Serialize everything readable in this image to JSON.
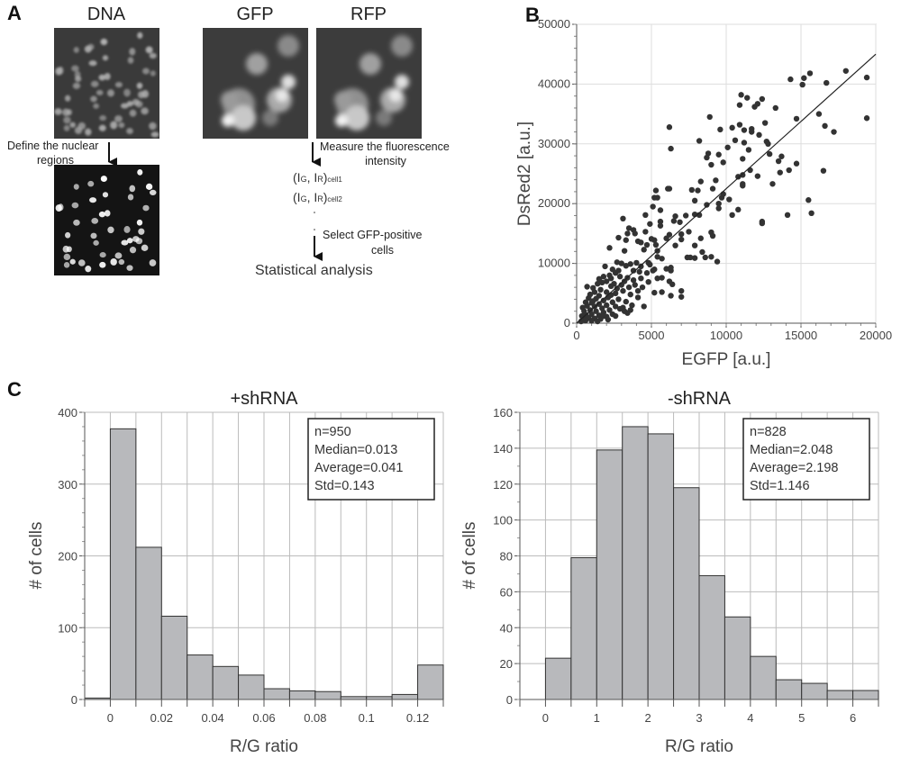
{
  "panel_a": {
    "label": "A",
    "dna_title": "DNA",
    "gfp_title": "GFP",
    "rfp_title": "RFP",
    "define_line1": "Define the nuclear",
    "define_line2": "regions",
    "measure_line1": "Measure the fluorescence",
    "measure_line2": "intensity",
    "cell1": {
      "main": "(I",
      "g": "G",
      "mid": ", I",
      "r": "R",
      "close": ")",
      "sub": "cell1"
    },
    "cell2": {
      "main": "(I",
      "g": "G",
      "mid": ", I",
      "r": "R",
      "close": ")",
      "sub": "cell2"
    },
    "select_line1": "Select GFP-positive",
    "select_line2": "cells",
    "final": "Statistical analysis"
  },
  "panel_b_label": "B",
  "panel_c_label": "C",
  "chart_data": [
    {
      "type": "scatter",
      "xlabel": "EGFP [a.u.]",
      "ylabel": "DsRed2 [a.u.]",
      "xlim": [
        0,
        20000
      ],
      "ylim": [
        0,
        50000
      ],
      "xticks": [
        "0",
        "5000",
        "10000",
        "15000",
        "20000"
      ],
      "yticks": [
        "0",
        "10000",
        "20000",
        "30000",
        "40000",
        "50000"
      ],
      "grid": true,
      "marker_color": "#333333",
      "fit_line": {
        "x": [
          0,
          20000
        ],
        "y": [
          0,
          45000
        ]
      },
      "points": [
        [
          14300,
          40800
        ],
        [
          15200,
          41000
        ],
        [
          15600,
          41800
        ],
        [
          15100,
          39900
        ],
        [
          18000,
          42200
        ],
        [
          19400,
          41100
        ],
        [
          19400,
          34300
        ],
        [
          16700,
          40200
        ],
        [
          16200,
          35000
        ],
        [
          16600,
          33000
        ],
        [
          17200,
          32000
        ],
        [
          14700,
          34200
        ],
        [
          13300,
          36000
        ],
        [
          11000,
          38200
        ],
        [
          11400,
          37700
        ],
        [
          12400,
          37500
        ],
        [
          12100,
          36700
        ],
        [
          11900,
          36200
        ],
        [
          10900,
          36500
        ],
        [
          8900,
          34500
        ],
        [
          6200,
          32800
        ],
        [
          6300,
          29200
        ],
        [
          9600,
          32400
        ],
        [
          10900,
          33200
        ],
        [
          10400,
          32700
        ],
        [
          11200,
          32300
        ],
        [
          11700,
          32500
        ],
        [
          11700,
          32000
        ],
        [
          12200,
          31500
        ],
        [
          12600,
          33500
        ],
        [
          10600,
          30600
        ],
        [
          11200,
          30200
        ],
        [
          12700,
          30400
        ],
        [
          12800,
          30000
        ],
        [
          8200,
          30500
        ],
        [
          10100,
          29400
        ],
        [
          11500,
          29000
        ],
        [
          8800,
          28400
        ],
        [
          8700,
          27700
        ],
        [
          9500,
          28200
        ],
        [
          9800,
          26900
        ],
        [
          9000,
          26500
        ],
        [
          11100,
          27500
        ],
        [
          12900,
          28300
        ],
        [
          13700,
          27900
        ],
        [
          13500,
          27100
        ],
        [
          14700,
          26700
        ],
        [
          13600,
          25200
        ],
        [
          14200,
          25600
        ],
        [
          16500,
          25500
        ],
        [
          11100,
          24800
        ],
        [
          10800,
          24500
        ],
        [
          11600,
          25600
        ],
        [
          12100,
          24600
        ],
        [
          8300,
          23700
        ],
        [
          9300,
          23900
        ],
        [
          11100,
          23300
        ],
        [
          11100,
          23000
        ],
        [
          13100,
          23300
        ],
        [
          7700,
          22300
        ],
        [
          8100,
          22200
        ],
        [
          9100,
          22500
        ],
        [
          6100,
          22500
        ],
        [
          6200,
          22500
        ],
        [
          5300,
          22200
        ],
        [
          5200,
          21000
        ],
        [
          5400,
          21000
        ],
        [
          9700,
          21000
        ],
        [
          9800,
          21600
        ],
        [
          10200,
          20700
        ],
        [
          9500,
          20000
        ],
        [
          9500,
          19200
        ],
        [
          7900,
          20500
        ],
        [
          8700,
          19800
        ],
        [
          5100,
          19500
        ],
        [
          5600,
          18900
        ],
        [
          10800,
          19000
        ],
        [
          15500,
          20600
        ],
        [
          15700,
          18400
        ],
        [
          14100,
          18100
        ],
        [
          10400,
          18100
        ],
        [
          12400,
          17000
        ],
        [
          12400,
          16700
        ],
        [
          7300,
          18000
        ],
        [
          6600,
          17900
        ],
        [
          7900,
          18200
        ],
        [
          8200,
          18100
        ],
        [
          4600,
          18100
        ],
        [
          3100,
          17500
        ],
        [
          6500,
          17100
        ],
        [
          5600,
          17000
        ],
        [
          6900,
          16900
        ],
        [
          5600,
          16300
        ],
        [
          4900,
          16600
        ],
        [
          3500,
          15900
        ],
        [
          3800,
          15600
        ],
        [
          3900,
          15000
        ],
        [
          3400,
          15000
        ],
        [
          4600,
          15300
        ],
        [
          6200,
          14800
        ],
        [
          7500,
          15300
        ],
        [
          7000,
          14900
        ],
        [
          9000,
          15200
        ],
        [
          9100,
          14600
        ],
        [
          8300,
          14200
        ],
        [
          5200,
          13900
        ],
        [
          5000,
          14100
        ],
        [
          5300,
          13100
        ],
        [
          6000,
          14200
        ],
        [
          7000,
          14000
        ],
        [
          2800,
          14300
        ],
        [
          3300,
          13900
        ],
        [
          4100,
          13700
        ],
        [
          4300,
          13500
        ],
        [
          4700,
          13100
        ],
        [
          6600,
          13000
        ],
        [
          7900,
          13000
        ],
        [
          5400,
          12100
        ],
        [
          2200,
          12600
        ],
        [
          3200,
          12100
        ],
        [
          4500,
          12300
        ],
        [
          8400,
          11900
        ],
        [
          7400,
          11000
        ],
        [
          7600,
          11000
        ],
        [
          7900,
          10900
        ],
        [
          8600,
          11000
        ],
        [
          9000,
          11100
        ],
        [
          9400,
          10300
        ],
        [
          5700,
          10800
        ],
        [
          5400,
          11100
        ],
        [
          4800,
          10100
        ],
        [
          6300,
          9300
        ],
        [
          6000,
          9100
        ],
        [
          6300,
          8800
        ],
        [
          5100,
          8800
        ],
        [
          5700,
          7600
        ],
        [
          5400,
          7500
        ],
        [
          6200,
          7000
        ],
        [
          6400,
          6500
        ],
        [
          4800,
          6900
        ],
        [
          6300,
          4600
        ],
        [
          7000,
          5400
        ],
        [
          7000,
          4400
        ],
        [
          5700,
          5200
        ],
        [
          5200,
          5100
        ],
        [
          4100,
          4300
        ],
        [
          4500,
          2800
        ],
        [
          3600,
          2200
        ],
        [
          3400,
          1700
        ],
        [
          2900,
          2400
        ],
        [
          3000,
          10000
        ],
        [
          2700,
          10200
        ],
        [
          3300,
          9600
        ],
        [
          3600,
          9900
        ],
        [
          4000,
          10100
        ],
        [
          4300,
          9500
        ],
        [
          3800,
          8800
        ],
        [
          4200,
          8600
        ],
        [
          2400,
          9000
        ],
        [
          2600,
          8400
        ],
        [
          2900,
          7800
        ],
        [
          3400,
          7600
        ],
        [
          3800,
          7200
        ],
        [
          4300,
          7500
        ],
        [
          2200,
          8000
        ],
        [
          1800,
          7800
        ],
        [
          1500,
          7400
        ],
        [
          2000,
          7000
        ],
        [
          2500,
          6600
        ],
        [
          3000,
          6400
        ],
        [
          3500,
          6000
        ],
        [
          2300,
          6200
        ],
        [
          1400,
          6600
        ],
        [
          1100,
          5900
        ],
        [
          700,
          6100
        ],
        [
          1600,
          5600
        ],
        [
          2000,
          5200
        ],
        [
          2600,
          5000
        ],
        [
          3100,
          5400
        ],
        [
          3600,
          4800
        ],
        [
          1200,
          5200
        ],
        [
          900,
          4800
        ],
        [
          1500,
          4600
        ],
        [
          2100,
          4300
        ],
        [
          2800,
          4000
        ],
        [
          3300,
          3600
        ],
        [
          2400,
          3500
        ],
        [
          1800,
          3800
        ],
        [
          1300,
          4100
        ],
        [
          800,
          4200
        ],
        [
          600,
          3500
        ],
        [
          1000,
          3400
        ],
        [
          1500,
          3200
        ],
        [
          2000,
          3000
        ],
        [
          2600,
          2800
        ],
        [
          3100,
          2600
        ],
        [
          2200,
          2200
        ],
        [
          1700,
          2500
        ],
        [
          1200,
          2800
        ],
        [
          700,
          2900
        ],
        [
          400,
          2600
        ],
        [
          500,
          2000
        ],
        [
          900,
          2200
        ],
        [
          1300,
          2000
        ],
        [
          1800,
          1800
        ],
        [
          2400,
          1500
        ],
        [
          2000,
          1100
        ],
        [
          1500,
          1300
        ],
        [
          1000,
          1500
        ],
        [
          600,
          1400
        ],
        [
          350,
          1200
        ],
        [
          450,
          800
        ],
        [
          800,
          900
        ],
        [
          1200,
          800
        ],
        [
          1600,
          700
        ],
        [
          2100,
          600
        ],
        [
          1000,
          400
        ],
        [
          600,
          450
        ],
        [
          300,
          300
        ],
        [
          1400,
          300
        ],
        [
          1800,
          1200
        ],
        [
          2300,
          4700
        ],
        [
          2700,
          5800
        ],
        [
          3200,
          7000
        ],
        [
          3900,
          6400
        ],
        [
          4400,
          6000
        ],
        [
          4100,
          5400
        ],
        [
          3700,
          3000
        ],
        [
          3200,
          2000
        ],
        [
          2600,
          1200
        ],
        [
          1100,
          3700
        ],
        [
          1700,
          6800
        ],
        [
          2300,
          7500
        ],
        [
          2800,
          8800
        ],
        [
          1900,
          9500
        ],
        [
          4900,
          9800
        ],
        [
          5200,
          9000
        ],
        [
          4700,
          8400
        ]
      ]
    },
    {
      "type": "bar",
      "title": "+shRNA",
      "xlabel": "R/G ratio",
      "ylabel": "# of cells",
      "xlim": [
        -0.01,
        0.13
      ],
      "ylim": [
        0,
        400
      ],
      "bin_width": 0.01,
      "bin_starts": [
        -0.01,
        0,
        0.01,
        0.02,
        0.03,
        0.04,
        0.05,
        0.06,
        0.07,
        0.08,
        0.09,
        0.1,
        0.11,
        0.12
      ],
      "values": [
        2,
        377,
        212,
        116,
        62,
        46,
        34,
        15,
        12,
        11,
        4,
        4,
        7,
        48
      ],
      "xticks": [
        {
          "v": 0,
          "label": "0"
        },
        {
          "v": 0.02,
          "label": "0.02"
        },
        {
          "v": 0.04,
          "label": "0.04"
        },
        {
          "v": 0.06,
          "label": "0.06"
        },
        {
          "v": 0.08,
          "label": "0.08"
        },
        {
          "v": 0.1,
          "label": "0.1"
        },
        {
          "v": 0.12,
          "label": "0.12"
        }
      ],
      "yticks": [
        {
          "v": 0,
          "label": "0"
        },
        {
          "v": 100,
          "label": "100"
        },
        {
          "v": 200,
          "label": "200"
        },
        {
          "v": 300,
          "label": "300"
        },
        {
          "v": 400,
          "label": "400"
        }
      ],
      "grid": true,
      "bar_color": "#b8b9bc",
      "stats": [
        "n=950",
        "Median=0.013",
        "Average=0.041",
        "Std=0.143"
      ],
      "stats_position": "top-right"
    },
    {
      "type": "bar",
      "title": "-shRNA",
      "xlabel": "R/G ratio",
      "ylabel": "# of cells",
      "xlim": [
        -0.5,
        6.5
      ],
      "ylim": [
        0,
        160
      ],
      "bin_width": 0.5,
      "bin_starts": [
        -0.5,
        0,
        0.5,
        1,
        1.5,
        2,
        2.5,
        3,
        3.5,
        4,
        4.5,
        5,
        5.5,
        6
      ],
      "values": [
        0,
        23,
        79,
        139,
        152,
        148,
        118,
        69,
        46,
        24,
        11,
        9,
        5,
        5
      ],
      "xticks": [
        {
          "v": 0,
          "label": "0"
        },
        {
          "v": 1,
          "label": "1"
        },
        {
          "v": 2,
          "label": "2"
        },
        {
          "v": 3,
          "label": "3"
        },
        {
          "v": 4,
          "label": "4"
        },
        {
          "v": 5,
          "label": "5"
        },
        {
          "v": 6,
          "label": "6"
        }
      ],
      "yticks": [
        {
          "v": 0,
          "label": "0"
        },
        {
          "v": 20,
          "label": "20"
        },
        {
          "v": 40,
          "label": "40"
        },
        {
          "v": 60,
          "label": "60"
        },
        {
          "v": 80,
          "label": "80"
        },
        {
          "v": 100,
          "label": "100"
        },
        {
          "v": 120,
          "label": "120"
        },
        {
          "v": 140,
          "label": "140"
        },
        {
          "v": 160,
          "label": "160"
        }
      ],
      "grid": true,
      "bar_color": "#b8b9bc",
      "stats": [
        "n=828",
        "Median=2.048",
        "Average=2.198",
        "Std=1.146"
      ],
      "stats_position": "top-right"
    }
  ]
}
